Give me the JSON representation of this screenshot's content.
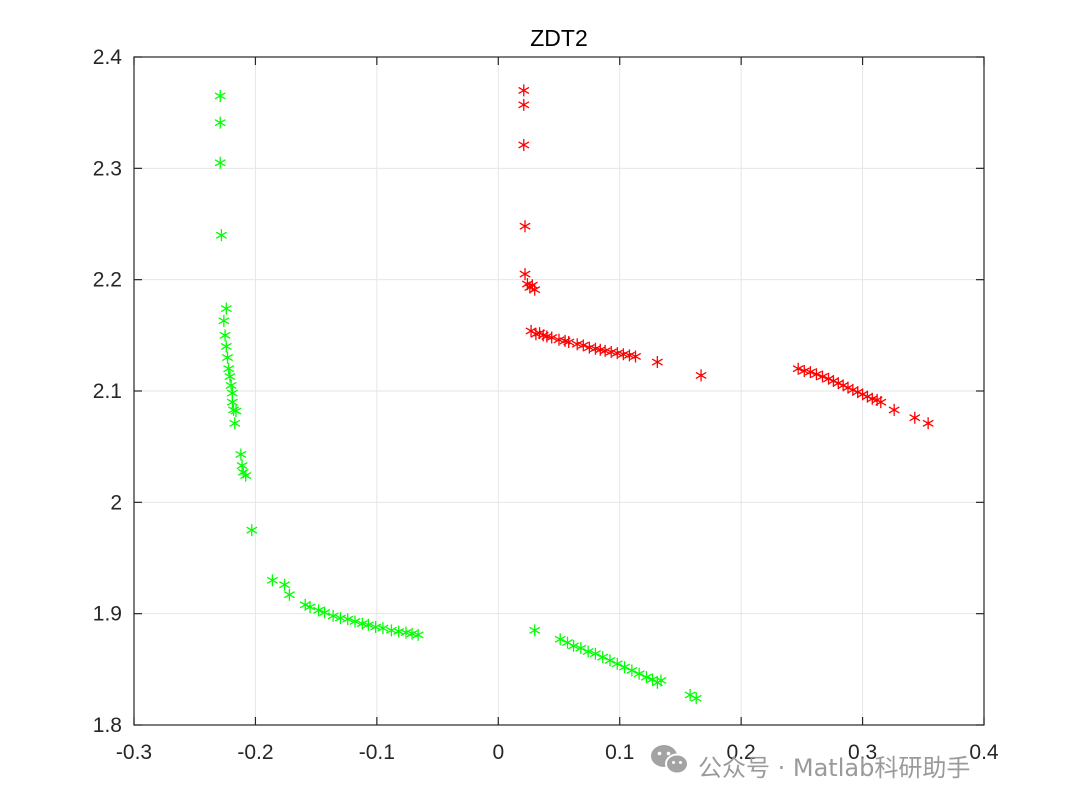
{
  "watermark": {
    "text": "公众号 · Matlab科研助手",
    "icon": "wechat-icon"
  },
  "colors": {
    "series_red": "#ff0000",
    "series_green": "#00ff00",
    "grid": "#e6e6e6",
    "axis": "#262626",
    "watermark": "#9a9a9a"
  },
  "chart_data": {
    "type": "scatter",
    "title": "ZDT2",
    "xlabel": "",
    "ylabel": "",
    "xlim": [
      -0.3,
      0.4
    ],
    "ylim": [
      1.8,
      2.4
    ],
    "xticks": [
      -0.3,
      -0.2,
      -0.1,
      0,
      0.1,
      0.2,
      0.3,
      0.4
    ],
    "xtick_labels": [
      "-0.3",
      "-0.2",
      "-0.1",
      "0",
      "0.1",
      "0.2",
      "0.3",
      "0.4"
    ],
    "yticks": [
      1.8,
      1.9,
      2.0,
      2.1,
      2.2,
      2.3,
      2.4
    ],
    "ytick_labels": [
      "1.8",
      "1.9",
      "2",
      "2.1",
      "2.2",
      "2.3",
      "2.4"
    ],
    "grid": true,
    "box": true,
    "marker": "asterisk",
    "series": [
      {
        "color": "#ff0000",
        "points": [
          [
            0.021,
            2.37
          ],
          [
            0.021,
            2.357
          ],
          [
            0.021,
            2.321
          ],
          [
            0.022,
            2.248
          ],
          [
            0.022,
            2.205
          ],
          [
            0.024,
            2.196
          ],
          [
            0.026,
            2.193
          ],
          [
            0.028,
            2.195
          ],
          [
            0.03,
            2.191
          ],
          [
            0.027,
            2.154
          ],
          [
            0.031,
            2.151
          ],
          [
            0.034,
            2.152
          ],
          [
            0.037,
            2.15
          ],
          [
            0.04,
            2.149
          ],
          [
            0.044,
            2.148
          ],
          [
            0.05,
            2.146
          ],
          [
            0.055,
            2.145
          ],
          [
            0.058,
            2.144
          ],
          [
            0.065,
            2.142
          ],
          [
            0.07,
            2.141
          ],
          [
            0.075,
            2.139
          ],
          [
            0.08,
            2.138
          ],
          [
            0.084,
            2.137
          ],
          [
            0.088,
            2.136
          ],
          [
            0.093,
            2.135
          ],
          [
            0.098,
            2.134
          ],
          [
            0.103,
            2.133
          ],
          [
            0.108,
            2.132
          ],
          [
            0.113,
            2.131
          ],
          [
            0.131,
            2.126
          ],
          [
            0.167,
            2.114
          ],
          [
            0.247,
            2.12
          ],
          [
            0.252,
            2.118
          ],
          [
            0.257,
            2.117
          ],
          [
            0.262,
            2.115
          ],
          [
            0.267,
            2.113
          ],
          [
            0.272,
            2.111
          ],
          [
            0.276,
            2.109
          ],
          [
            0.28,
            2.107
          ],
          [
            0.284,
            2.105
          ],
          [
            0.288,
            2.103
          ],
          [
            0.292,
            2.101
          ],
          [
            0.296,
            2.099
          ],
          [
            0.3,
            2.097
          ],
          [
            0.304,
            2.095
          ],
          [
            0.308,
            2.093
          ],
          [
            0.312,
            2.092
          ],
          [
            0.315,
            2.09
          ],
          [
            0.326,
            2.083
          ],
          [
            0.343,
            2.076
          ],
          [
            0.354,
            2.071
          ]
        ]
      },
      {
        "color": "#00ff00",
        "points": [
          [
            -0.229,
            2.365
          ],
          [
            -0.229,
            2.341
          ],
          [
            -0.229,
            2.305
          ],
          [
            -0.228,
            2.24
          ],
          [
            -0.224,
            2.174
          ],
          [
            -0.226,
            2.163
          ],
          [
            -0.225,
            2.15
          ],
          [
            -0.224,
            2.14
          ],
          [
            -0.223,
            2.13
          ],
          [
            -0.222,
            2.12
          ],
          [
            -0.221,
            2.113
          ],
          [
            -0.22,
            2.105
          ],
          [
            -0.219,
            2.098
          ],
          [
            -0.219,
            2.09
          ],
          [
            -0.218,
            2.083
          ],
          [
            -0.216,
            2.082
          ],
          [
            -0.217,
            2.071
          ],
          [
            -0.212,
            2.043
          ],
          [
            -0.211,
            2.033
          ],
          [
            -0.21,
            2.027
          ],
          [
            -0.208,
            2.024
          ],
          [
            -0.203,
            1.975
          ],
          [
            -0.186,
            1.93
          ],
          [
            -0.176,
            1.926
          ],
          [
            -0.172,
            1.917
          ],
          [
            -0.159,
            1.908
          ],
          [
            -0.155,
            1.906
          ],
          [
            -0.148,
            1.903
          ],
          [
            -0.143,
            1.901
          ],
          [
            -0.136,
            1.898
          ],
          [
            -0.13,
            1.896
          ],
          [
            -0.124,
            1.895
          ],
          [
            -0.118,
            1.893
          ],
          [
            -0.112,
            1.891
          ],
          [
            -0.107,
            1.89
          ],
          [
            -0.101,
            1.888
          ],
          [
            -0.095,
            1.887
          ],
          [
            -0.088,
            1.885
          ],
          [
            -0.082,
            1.884
          ],
          [
            -0.076,
            1.883
          ],
          [
            -0.071,
            1.882
          ],
          [
            -0.066,
            1.881
          ],
          [
            0.03,
            1.885
          ],
          [
            0.051,
            1.877
          ],
          [
            0.057,
            1.874
          ],
          [
            0.062,
            1.871
          ],
          [
            0.068,
            1.869
          ],
          [
            0.074,
            1.866
          ],
          [
            0.08,
            1.864
          ],
          [
            0.086,
            1.861
          ],
          [
            0.092,
            1.858
          ],
          [
            0.098,
            1.855
          ],
          [
            0.104,
            1.852
          ],
          [
            0.11,
            1.849
          ],
          [
            0.116,
            1.846
          ],
          [
            0.122,
            1.843
          ],
          [
            0.127,
            1.841
          ],
          [
            0.131,
            1.838
          ],
          [
            0.134,
            1.84
          ],
          [
            0.158,
            1.827
          ],
          [
            0.163,
            1.824
          ]
        ]
      }
    ]
  }
}
